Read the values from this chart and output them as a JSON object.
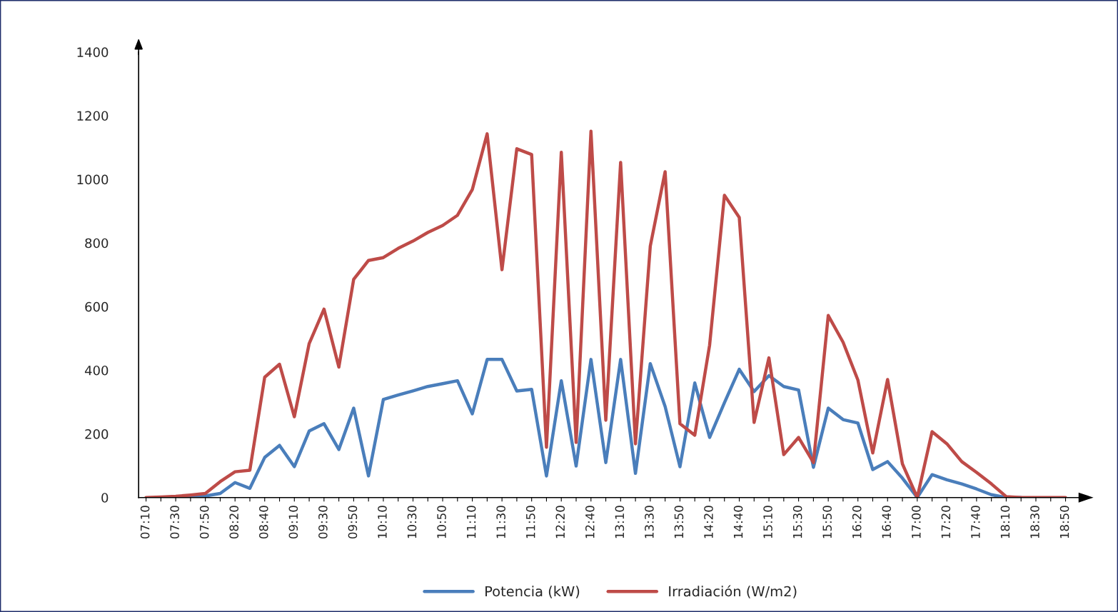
{
  "chart_data": {
    "type": "line",
    "categories": [
      "07:10",
      null,
      "07:30",
      null,
      "07:50",
      null,
      "08:20",
      null,
      "08:40",
      null,
      "09:10",
      null,
      "09:30",
      null,
      "09:50",
      null,
      "10:10",
      null,
      "10:30",
      null,
      "10:50",
      null,
      "11:10",
      null,
      "11:30",
      null,
      "11:50",
      null,
      "12:20",
      null,
      "12:40",
      null,
      "13:10",
      null,
      "13:30",
      null,
      "13:50",
      null,
      "14:20",
      null,
      "14:40",
      null,
      "15:10",
      null,
      "15:30",
      null,
      "15:50",
      null,
      "16:20",
      null,
      "16:40",
      null,
      "17:00",
      null,
      "17:20",
      null,
      "17:40",
      null,
      "18:10",
      null,
      "18:30",
      null,
      "18:50"
    ],
    "series": [
      {
        "name": "Potencia (kW)",
        "color": "#4a7ebb",
        "values": [
          null,
          null,
          0,
          2,
          5,
          13,
          47,
          29,
          126,
          164,
          97,
          209,
          232,
          151,
          281,
          68,
          308,
          322,
          335,
          349,
          358,
          367,
          263,
          434,
          434,
          335,
          340,
          68,
          367,
          99,
          434,
          110,
          434,
          76,
          421,
          286,
          97,
          360,
          189,
          298,
          403,
          333,
          383,
          349,
          338,
          95,
          281,
          245,
          234,
          88,
          113,
          61,
          0,
          72,
          56,
          43,
          27,
          9,
          0,
          0,
          null,
          null,
          null
        ]
      },
      {
        "name": "Irradiación (W/m2)",
        "color": "#be4b48",
        "values": [
          0,
          2,
          4,
          8,
          13,
          50,
          81,
          86,
          378,
          419,
          254,
          484,
          592,
          410,
          686,
          745,
          754,
          783,
          806,
          833,
          855,
          887,
          968,
          1143,
          716,
          1096,
          1078,
          158,
          1085,
          173,
          1151,
          243,
          1053,
          169,
          790,
          1024,
          232,
          196,
          479,
          950,
          880,
          236,
          439,
          135,
          189,
          110,
          572,
          488,
          369,
          140,
          371,
          106,
          0,
          207,
          169,
          113,
          79,
          43,
          3,
          0,
          0,
          0,
          0
        ]
      }
    ],
    "ylim": [
      0,
      1400
    ],
    "yticks": [
      0,
      200,
      400,
      600,
      800,
      1000,
      1200,
      1400
    ],
    "grid": false,
    "legend": "bottom",
    "marker": "none",
    "line_style": "solid"
  }
}
